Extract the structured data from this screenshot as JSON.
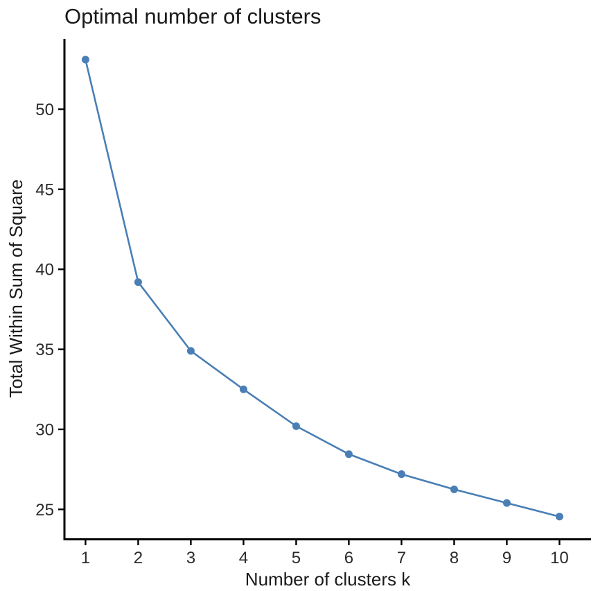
{
  "chart_data": {
    "type": "line",
    "title": "Optimal number of clusters",
    "xlabel": "Number of clusters k",
    "ylabel": "Total Within Sum of Square",
    "x": [
      1,
      2,
      3,
      4,
      5,
      6,
      7,
      8,
      9,
      10
    ],
    "series": [
      {
        "values": [
          53.1,
          39.2,
          34.9,
          32.5,
          30.2,
          28.45,
          27.2,
          26.25,
          25.4,
          24.55
        ]
      }
    ],
    "xlim": [
      0.6,
      10.6
    ],
    "ylim": [
      23.15,
      54.4
    ],
    "x_ticks": [
      "1",
      "2",
      "3",
      "4",
      "5",
      "6",
      "7",
      "8",
      "9",
      "10"
    ],
    "y_ticks": [
      "25",
      "30",
      "35",
      "40",
      "45",
      "50"
    ],
    "grid": false,
    "colors": {
      "series": "#4a7fb5",
      "axis": "#000000",
      "text": "#1a1a1a"
    }
  }
}
